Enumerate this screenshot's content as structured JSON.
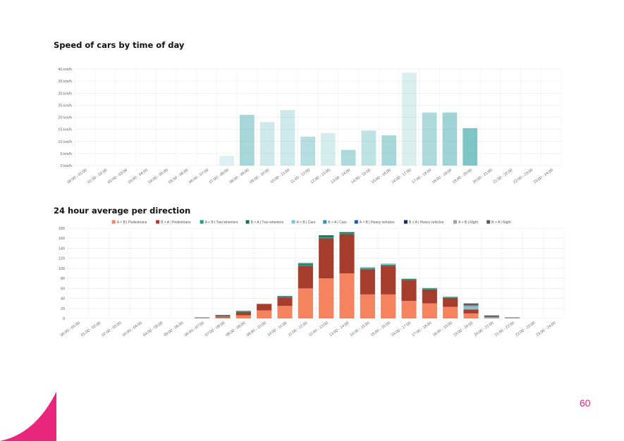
{
  "page_number": "60",
  "chart_data": [
    {
      "type": "bar",
      "title": "Speed of cars by time of day",
      "ylim": [
        0,
        40
      ],
      "yticks": [
        "0 km/h",
        "5 km/h",
        "10 km/h",
        "15 km/h",
        "20 km/h",
        "25 km/h",
        "30 km/h",
        "35 km/h",
        "40 km/h"
      ],
      "grid": true,
      "categories": [
        "00:00 - 01:00",
        "01:00 - 02:00",
        "02:00 - 03:00",
        "03:00 - 04:00",
        "04:00 - 05:00",
        "05:00 - 06:00",
        "06:00 - 07:00",
        "07:00 - 08:00",
        "08:00 - 09:00",
        "09:00 - 10:00",
        "10:00 - 11:00",
        "11:00 - 12:00",
        "12:00 - 13:00",
        "13:00 - 14:00",
        "14:00 - 15:00",
        "15:00 - 16:00",
        "16:00 - 17:00",
        "17:00 - 18:00",
        "18:00 - 19:00",
        "19:00 - 20:00",
        "20:00 - 21:00",
        "21:00 - 22:00",
        "22:00 - 23:00",
        "23:00 - 24:00"
      ],
      "values": [
        0,
        0,
        0,
        0,
        0,
        0,
        0,
        4,
        21,
        18,
        23,
        12,
        13.5,
        6.5,
        14.5,
        12.5,
        38.5,
        22,
        22,
        15.5,
        0,
        0,
        0,
        0
      ],
      "bar_opacity": [
        0,
        0,
        0,
        0,
        0,
        0,
        0,
        0.2,
        0.55,
        0.3,
        0.3,
        0.45,
        0.25,
        0.5,
        0.4,
        0.55,
        0.22,
        0.5,
        0.6,
        0.8,
        0,
        0,
        0,
        0
      ],
      "bar_color": "#5fb6b8"
    },
    {
      "type": "bar",
      "stacked": true,
      "title": "24 hour average per direction",
      "ylim": [
        0,
        180
      ],
      "yticks": [
        "0",
        "20",
        "40",
        "60",
        "80",
        "100",
        "120",
        "140",
        "160",
        "180"
      ],
      "grid": true,
      "legend_position": "top",
      "categories": [
        "00:00 - 01:00",
        "01:00 - 02:00",
        "02:00 - 03:00",
        "03:00 - 04:00",
        "04:00 - 05:00",
        "05:00 - 06:00",
        "06:00 - 07:00",
        "07:00 - 08:00",
        "08:00 - 09:00",
        "09:00 - 10:00",
        "10:00 - 11:00",
        "11:00 - 12:00",
        "12:00 - 13:00",
        "13:00 - 14:00",
        "14:00 - 15:00",
        "15:00 - 16:00",
        "16:00 - 17:00",
        "17:00 - 18:00",
        "18:00 - 19:00",
        "19:00 - 20:00",
        "20:00 - 21:00",
        "21:00 - 22:00",
        "22:00 - 23:00",
        "23:00 - 24:00"
      ],
      "series": [
        {
          "name": "A > B | Pedestrians",
          "color": "#f4845f",
          "values": [
            0,
            0,
            0,
            0,
            0,
            0,
            0,
            2,
            6,
            16,
            25,
            60,
            80,
            90,
            48,
            48,
            35,
            30,
            23,
            10,
            0,
            0,
            0,
            0
          ]
        },
        {
          "name": "B > A | Pedestrians",
          "color": "#a63c2e",
          "values": [
            0,
            0,
            0,
            0,
            0,
            0,
            0,
            2,
            7,
            13,
            17,
            45,
            80,
            78,
            50,
            57,
            42,
            28,
            18,
            8,
            0,
            0,
            0,
            0
          ]
        },
        {
          "name": "A > B | Two-wheelers",
          "color": "#1e9e7a",
          "values": [
            0,
            0,
            0,
            0,
            0,
            0,
            0,
            0,
            1,
            0,
            1,
            2,
            3,
            2,
            1,
            1,
            1,
            1,
            1,
            0,
            0,
            0,
            0,
            0
          ]
        },
        {
          "name": "B > A | Two-wheelers",
          "color": "#196f56",
          "values": [
            0,
            0,
            0,
            0,
            0,
            0,
            0,
            0,
            1,
            0,
            1,
            2,
            3,
            2,
            1,
            1,
            1,
            1,
            1,
            0,
            0,
            0,
            0,
            0
          ]
        },
        {
          "name": "A > B | Cars",
          "color": "#7fc6d9",
          "values": [
            0,
            0,
            0,
            0,
            0,
            0,
            0,
            0,
            0,
            0,
            0,
            1,
            0,
            1,
            1,
            1,
            0,
            1,
            0,
            5,
            0,
            0,
            0,
            0
          ]
        },
        {
          "name": "B > A | Cars",
          "color": "#3b8fb0",
          "values": [
            0,
            0,
            0,
            0,
            0,
            0,
            0,
            0,
            0,
            0,
            1,
            1,
            0,
            0,
            1,
            1,
            0,
            0,
            0,
            0,
            0,
            0,
            0,
            0
          ]
        },
        {
          "name": "A > B | Heavy vehicles",
          "color": "#1f5a94",
          "values": [
            0,
            0,
            0,
            0,
            0,
            0,
            0,
            0,
            0,
            0,
            0,
            0,
            0,
            0,
            0,
            0,
            0,
            0,
            0,
            0,
            0,
            0,
            0,
            0
          ]
        },
        {
          "name": "B > A | Heavy vehicles",
          "color": "#0d2d5a",
          "values": [
            0,
            0,
            0,
            0,
            0,
            0,
            0,
            0,
            0,
            0,
            0,
            0,
            0,
            0,
            0,
            0,
            0,
            0,
            0,
            0,
            0,
            0,
            0,
            0
          ]
        },
        {
          "name": "A > B | Night",
          "color": "#a0a0a0",
          "values": [
            0,
            0,
            0,
            0,
            0,
            0,
            1,
            1,
            0,
            0,
            0,
            0,
            0,
            0,
            0,
            0,
            0,
            0,
            0,
            3,
            3,
            1,
            0,
            0
          ]
        },
        {
          "name": "B > A | Night",
          "color": "#5c5c5c",
          "values": [
            0,
            0,
            0,
            0,
            0,
            0,
            1,
            2,
            0,
            0,
            0,
            0,
            0,
            0,
            0,
            0,
            0,
            0,
            0,
            4,
            3,
            1,
            0,
            0
          ]
        }
      ]
    }
  ]
}
